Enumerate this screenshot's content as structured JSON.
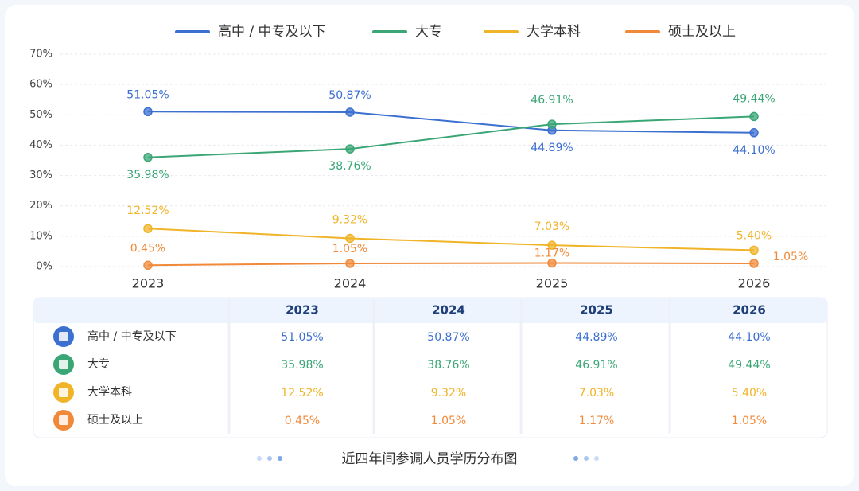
{
  "chart_data": {
    "type": "line",
    "title": "近四年间参调人员学历分布图",
    "categories": [
      "2023",
      "2024",
      "2025",
      "2026"
    ],
    "ylim": [
      0,
      70
    ],
    "yticks": [
      {
        "value": 0,
        "label": "0%"
      },
      {
        "value": 10,
        "label": "10%"
      },
      {
        "value": 20,
        "label": "20%"
      },
      {
        "value": 30,
        "label": "30%"
      },
      {
        "value": 40,
        "label": "40%"
      },
      {
        "value": 50,
        "label": "50%"
      },
      {
        "value": 60,
        "label": "60%"
      },
      {
        "value": 70,
        "label": "70%"
      }
    ],
    "grid": true,
    "legend": "top",
    "series": [
      {
        "name": "高中 / 中专及以下",
        "color": "#3b6fd0",
        "values": [
          51.05,
          50.87,
          44.89,
          44.1
        ],
        "value_labels": [
          "51.05%",
          "50.87%",
          "44.89%",
          "44.10%"
        ]
      },
      {
        "name": "大专",
        "color": "#3aa676",
        "values": [
          35.98,
          38.76,
          46.91,
          49.44
        ],
        "value_labels": [
          "35.98%",
          "38.76%",
          "46.91%",
          "49.44%"
        ]
      },
      {
        "name": "大学本科",
        "color": "#f0b429",
        "values": [
          12.52,
          9.32,
          7.03,
          5.4
        ],
        "value_labels": [
          "12.52%",
          "9.32%",
          "7.03%",
          "5.40%"
        ]
      },
      {
        "name": "硕士及以上",
        "color": "#f08a3a",
        "values": [
          0.45,
          1.05,
          1.17,
          1.05
        ],
        "value_labels": [
          "0.45%",
          "1.05%",
          "1.17%",
          "1.05%"
        ]
      }
    ]
  }
}
